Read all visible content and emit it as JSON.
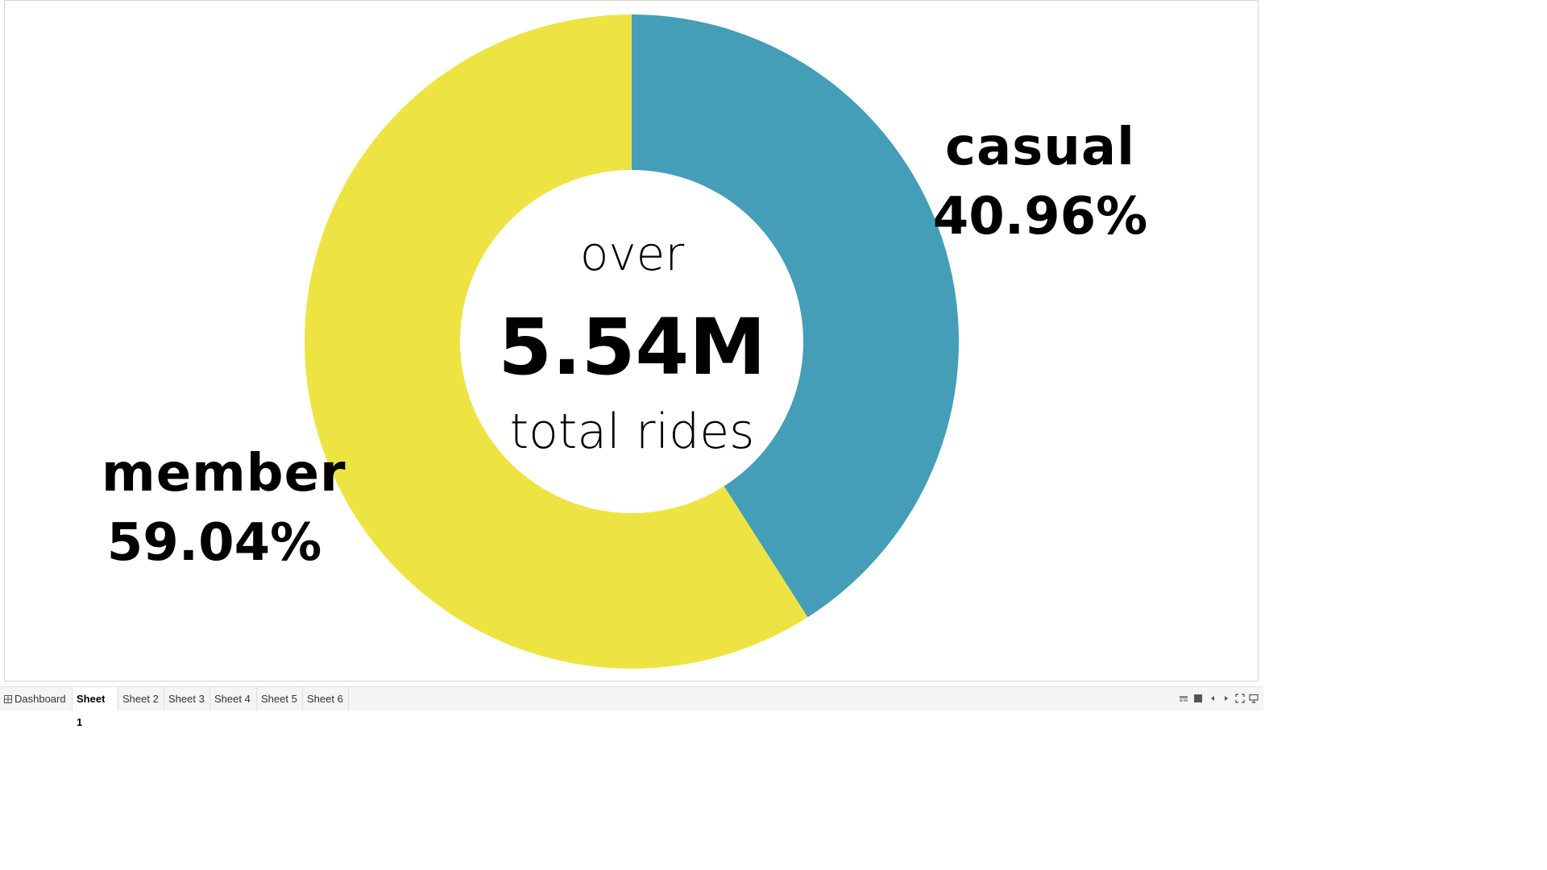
{
  "chart_data": {
    "type": "pie",
    "subtype": "donut",
    "slices": [
      {
        "label": "casual",
        "percent": 40.96,
        "percent_label": "40.96%",
        "color": "#449eb8"
      },
      {
        "label": "member",
        "percent": 59.04,
        "percent_label": "59.04%",
        "color": "#ede444"
      }
    ],
    "center_text": {
      "line1": "over",
      "line2": "5.54M",
      "line3": "total rides"
    }
  },
  "footer": {
    "tabs": [
      {
        "label": "Dashboard",
        "icon": "dashboard-grid-icon",
        "active": false
      },
      {
        "label": "Sheet 1",
        "active": true
      },
      {
        "label": "Sheet 2",
        "active": false
      },
      {
        "label": "Sheet 3",
        "active": false
      },
      {
        "label": "Sheet 4",
        "active": false
      },
      {
        "label": "Sheet 5",
        "active": false
      },
      {
        "label": "Sheet 6",
        "active": false
      }
    ],
    "controls": [
      "show-tabs-icon",
      "sheet-view-icon",
      "previous-sheet-icon",
      "next-sheet-icon",
      "fullscreen-icon",
      "presentation-mode-icon"
    ]
  }
}
